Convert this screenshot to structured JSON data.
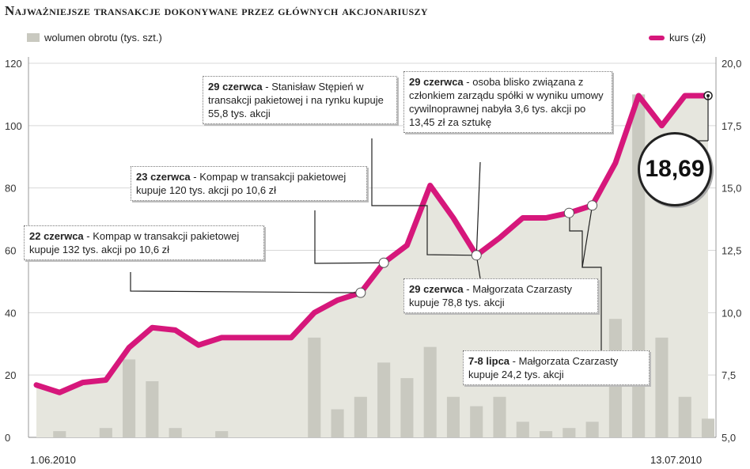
{
  "title": "Najważniejsze transakcje dokonywane przez głównych akcjonariuszy",
  "legend": {
    "volume": "wolumen obrotu (tys. szt.)",
    "price": "kurs (zł)"
  },
  "colors": {
    "price_line": "#d6177b",
    "volume_bar": "#c9c9c0",
    "area_fill": "#e6e6de"
  },
  "current_price": "18,69",
  "x_start_label": "1.06.2010",
  "x_end_label": "13.07.2010",
  "annotations": [
    {
      "date": "22 czerwca",
      "text": "Kompap w transakcji pakietowej kupuje 132 tys. akcji po 10,6 zł"
    },
    {
      "date": "23 czerwca",
      "text": "Kompap w transakcji pakietowej kupuje 120 tys. akcji po 10,6 zł"
    },
    {
      "date": "29 czerwca",
      "text": "Stanisław Stępień w transakcji pakietowej i na rynku kupuje 55,8 tys. akcji"
    },
    {
      "date": "29 czerwca",
      "text": "osoba blisko związana z członkiem zarządu spółki w wyniku umowy cywilnoprawnej nabyła 3,6 tys. akcji po 13,45 zł za sztukę"
    },
    {
      "date": "29 czerwca",
      "text": "Małgorzata Czarzasty kupuje 78,8 tys. akcji"
    },
    {
      "date": "7-8 lipca",
      "text": "Małgorzata Czarzasty kupuje 24,2 tys. akcji"
    }
  ],
  "chart_data": {
    "type": "bar",
    "title": "Najważniejsze transakcje dokonywane przez głównych akcjonariuszy",
    "x_labels": [
      "1.06.2010",
      "13.07.2010"
    ],
    "left_axis": {
      "label": "wolumen obrotu (tys. szt.)",
      "ylim": [
        0,
        120
      ],
      "ticks": [
        "0",
        "20",
        "40",
        "60",
        "80",
        "100",
        "120"
      ]
    },
    "right_axis": {
      "label": "kurs (zł)",
      "ylim": [
        5.0,
        20.0
      ],
      "ticks": [
        "5,0",
        "7,5",
        "10,0",
        "12,5",
        "15,0",
        "17,5",
        "20,0"
      ]
    },
    "grid": true,
    "legend_position": "top",
    "series": [
      {
        "name": "wolumen obrotu (tys. szt.)",
        "type": "bar",
        "axis": "left",
        "values": [
          0,
          2,
          0,
          3,
          25,
          18,
          3,
          0,
          2,
          0,
          0,
          0,
          32,
          9,
          13,
          24,
          19,
          29,
          13,
          10,
          13,
          5,
          2,
          3,
          5,
          38,
          110,
          32,
          13,
          6
        ]
      },
      {
        "name": "kurs (zł)",
        "type": "line",
        "axis": "right",
        "values": [
          7.1,
          6.8,
          7.2,
          7.3,
          8.6,
          9.4,
          9.3,
          8.7,
          9.0,
          9.0,
          9.0,
          9.0,
          10.0,
          10.5,
          10.8,
          12.0,
          12.7,
          15.1,
          13.8,
          12.3,
          13.0,
          13.8,
          13.8,
          14.0,
          14.3,
          16.0,
          18.7,
          17.5,
          18.7,
          18.7
        ]
      }
    ]
  }
}
